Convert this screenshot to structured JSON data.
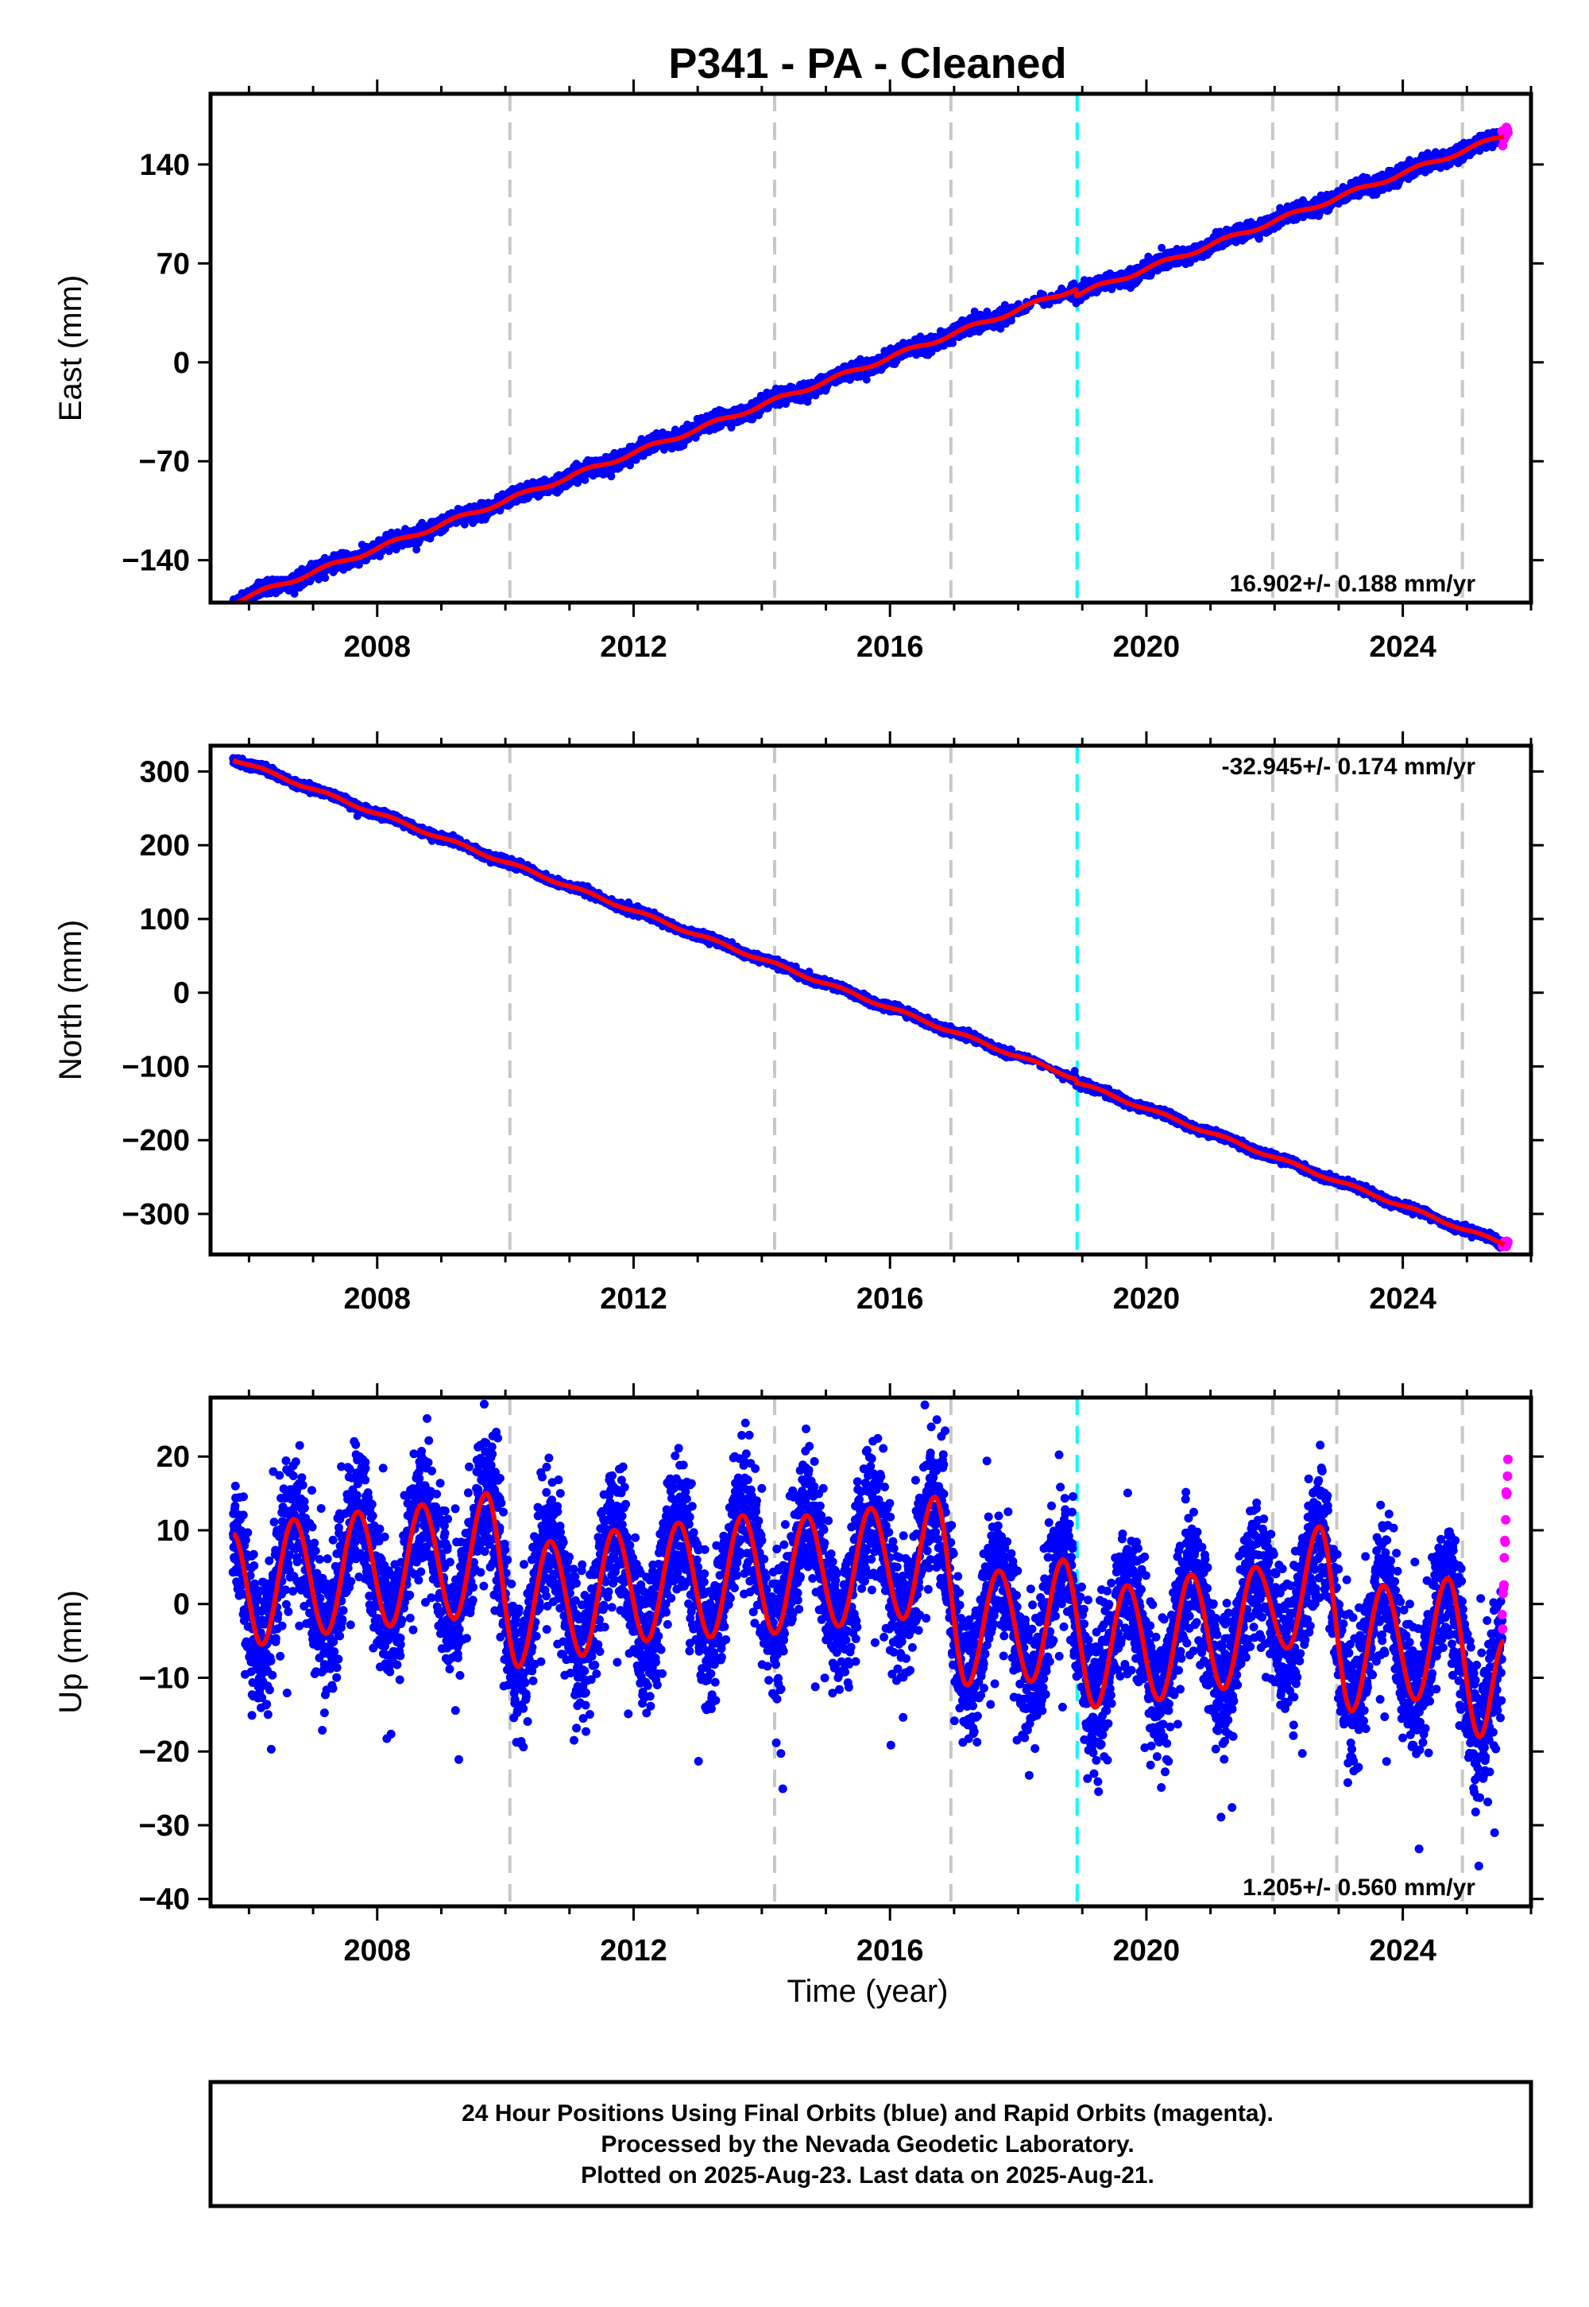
{
  "title": "P341  - PA - Cleaned",
  "xlabel": "Time (year)",
  "footer": {
    "line1": "24 Hour Positions Using Final Orbits (blue) and Rapid Orbits (magenta).",
    "line2": "Processed by the Nevada Geodetic Laboratory.",
    "line3": "Plotted on 2025-Aug-23. Last data on 2025-Aug-21."
  },
  "colors": {
    "final_orbits": "#0000ff",
    "rapid_orbits": "#ff00ff",
    "model_fit": "#ff0000",
    "equipment_change": "#00ffff",
    "event_lines": "#c8c8c8",
    "axes": "#000000"
  },
  "chart_data": [
    {
      "type": "scatter",
      "component": "east",
      "ylabel": "East (mm)",
      "rate_label": "16.902+/- 0.188 mm/yr",
      "rate_position": "bottom-right",
      "xlim": [
        2005.4,
        2026.0
      ],
      "ylim": [
        -170,
        190
      ],
      "xticks": [
        2008,
        2012,
        2016,
        2020,
        2024
      ],
      "yticks": [
        -140,
        -70,
        0,
        70,
        140
      ],
      "data_span": [
        2005.75,
        2025.64
      ],
      "trend": {
        "ref_year": 2015.5,
        "value_at_ref": -5,
        "rate_mm_per_yr": 16.902
      },
      "seasonal": {
        "amplitude": 1.5
      },
      "noise_mm": 2.5,
      "offset": {
        "year": 2018.9,
        "value": -5
      },
      "fit_end": 2025.58,
      "rapid": {
        "start": 2025.55,
        "end": 2025.64,
        "points": 12
      }
    },
    {
      "type": "scatter",
      "component": "north",
      "ylabel": "North (mm)",
      "rate_label": "-32.945+/- 0.174 mm/yr",
      "rate_position": "top-right",
      "xlim": [
        2005.4,
        2026.0
      ],
      "ylim": [
        -355,
        335
      ],
      "xticks": [
        2008,
        2012,
        2016,
        2020,
        2024
      ],
      "yticks": [
        -300,
        -200,
        -100,
        0,
        100,
        200,
        300
      ],
      "data_span": [
        2005.75,
        2025.64
      ],
      "trend": {
        "ref_year": 2015.5,
        "value_at_ref": -4,
        "rate_mm_per_yr": -32.945
      },
      "seasonal": {
        "amplitude": 2.0
      },
      "noise_mm": 2.5,
      "offset": {
        "year": 2018.9,
        "value": -5
      },
      "fit_end": 2025.58,
      "rapid": {
        "start": 2025.55,
        "end": 2025.64,
        "points": 12
      }
    },
    {
      "type": "scatter",
      "component": "up",
      "ylabel": "Up (mm)",
      "rate_label": "1.205+/- 0.560 mm/yr",
      "rate_position": "bottom-right",
      "xlim": [
        2005.4,
        2026.0
      ],
      "ylim": [
        -41,
        28
      ],
      "xticks": [
        2008,
        2012,
        2016,
        2020,
        2024
      ],
      "yticks": [
        -40,
        -30,
        -20,
        -10,
        0,
        10,
        20
      ],
      "data_span": [
        2005.75,
        2025.64
      ],
      "trend": {
        "ref_year": 2015.5,
        "value_at_ref": 0,
        "rate_mm_per_yr": 1.205
      },
      "seasonal_peaks": [
        {
          "year": 2005.75,
          "value": 9.5
        },
        {
          "year": 2006.2,
          "value": -5.5
        },
        {
          "year": 2006.7,
          "value": 11.5
        },
        {
          "year": 2007.2,
          "value": -4
        },
        {
          "year": 2007.7,
          "value": 12.5
        },
        {
          "year": 2008.2,
          "value": -3
        },
        {
          "year": 2008.7,
          "value": 13.5
        },
        {
          "year": 2009.2,
          "value": -2
        },
        {
          "year": 2009.7,
          "value": 15
        },
        {
          "year": 2010.2,
          "value": -8.5
        },
        {
          "year": 2010.7,
          "value": 8.5
        },
        {
          "year": 2011.2,
          "value": -7
        },
        {
          "year": 2011.7,
          "value": 10
        },
        {
          "year": 2012.2,
          "value": -5
        },
        {
          "year": 2012.7,
          "value": 11
        },
        {
          "year": 2013.2,
          "value": -4.5
        },
        {
          "year": 2013.7,
          "value": 12
        },
        {
          "year": 2014.2,
          "value": -4
        },
        {
          "year": 2014.7,
          "value": 12
        },
        {
          "year": 2015.2,
          "value": -3
        },
        {
          "year": 2015.7,
          "value": 13
        },
        {
          "year": 2016.2,
          "value": -2
        },
        {
          "year": 2016.7,
          "value": 14.5
        },
        {
          "year": 2017.2,
          "value": -11
        },
        {
          "year": 2017.7,
          "value": 4.5
        },
        {
          "year": 2018.2,
          "value": -10.5
        },
        {
          "year": 2018.7,
          "value": 6
        },
        {
          "year": 2019.2,
          "value": -14
        },
        {
          "year": 2019.7,
          "value": 2.5
        },
        {
          "year": 2020.2,
          "value": -13
        },
        {
          "year": 2020.7,
          "value": 4
        },
        {
          "year": 2021.2,
          "value": -11.5
        },
        {
          "year": 2021.7,
          "value": 5
        },
        {
          "year": 2022.2,
          "value": -6
        },
        {
          "year": 2022.7,
          "value": 10.5
        },
        {
          "year": 2023.2,
          "value": -14.5
        },
        {
          "year": 2023.7,
          "value": 2.5
        },
        {
          "year": 2024.2,
          "value": -13
        },
        {
          "year": 2024.7,
          "value": 3.5
        },
        {
          "year": 2025.2,
          "value": -18
        },
        {
          "year": 2025.58,
          "value": -5
        }
      ],
      "noise_mm": 4.5,
      "fit_end": 2025.58,
      "rapid": {
        "start": 2025.55,
        "end": 2025.64,
        "points": 14,
        "ymin": -2,
        "ymax": 19
      }
    }
  ],
  "event_lines": [
    2010.07,
    2014.2,
    2016.95,
    2021.97,
    2022.97,
    2024.93
  ],
  "equipment_change_line": 2018.92
}
